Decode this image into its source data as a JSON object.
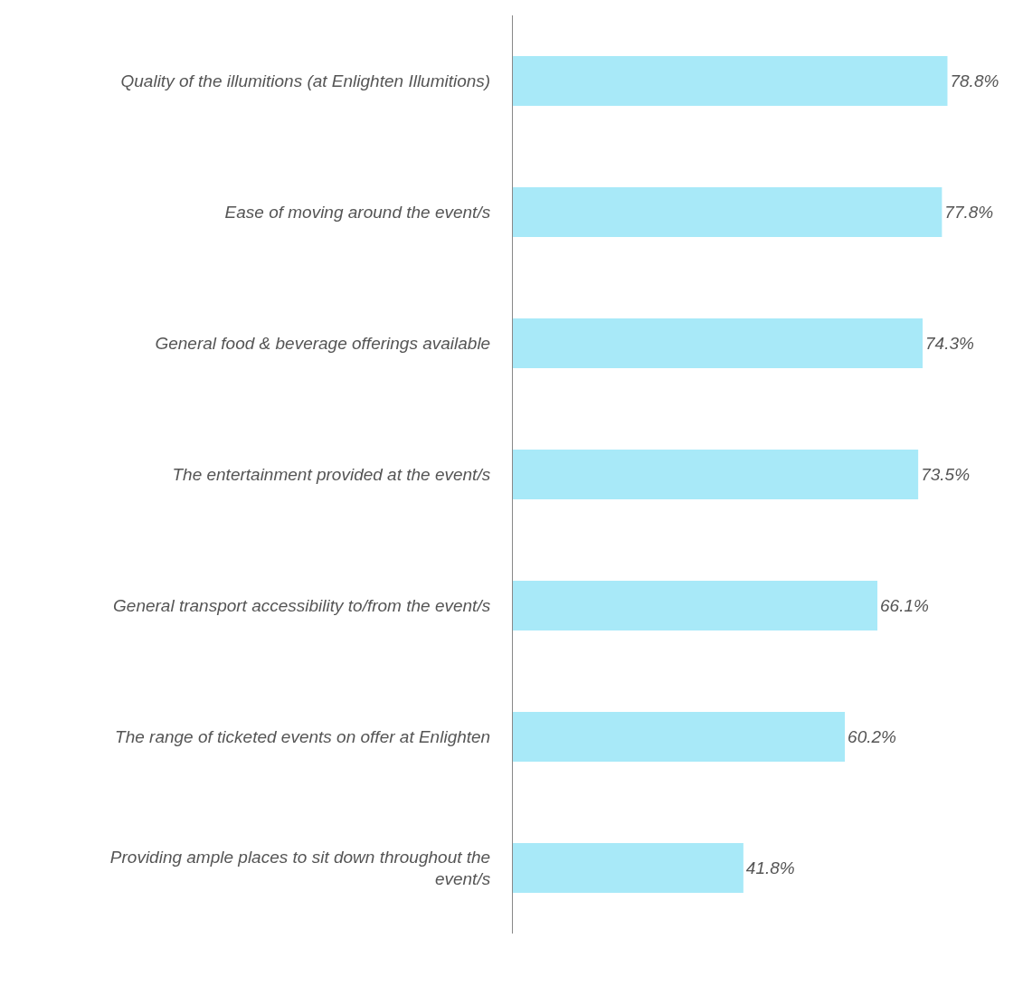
{
  "chart_data": {
    "type": "bar",
    "orientation": "horizontal",
    "categories": [
      "Quality of the illumitions (at Enlighten Illumitions)",
      "Ease of moving around the event/s",
      "General food & beverage offerings available",
      "The entertainment provided at the event/s",
      "General transport accessibility to/from the event/s",
      "The range of ticketed events on offer at Enlighten",
      "Providing ample places to sit down throughout the event/s"
    ],
    "values": [
      78.8,
      77.8,
      74.3,
      73.5,
      66.1,
      60.2,
      41.8
    ],
    "value_labels": [
      "78.8%",
      "77.8%",
      "74.3%",
      "73.5%",
      "66.1%",
      "60.2%",
      "41.8%"
    ],
    "color": "#a8e9f8",
    "xlim": [
      0,
      92.5
    ],
    "grid": false,
    "tick_labels": "y"
  }
}
